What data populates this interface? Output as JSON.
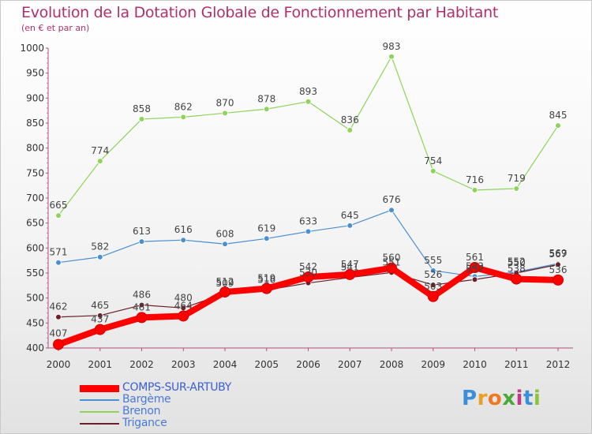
{
  "header": {
    "title": "Evolution de la Dotation Globale de Fonctionnement par Habitant",
    "subtitle": "(en € et par an)"
  },
  "logo": {
    "letters": [
      {
        "ch": "P",
        "color": "#3a8fd8"
      },
      {
        "ch": "r",
        "color": "#e8a020"
      },
      {
        "ch": "o",
        "color": "#f07820"
      },
      {
        "ch": "x",
        "color": "#4aa83a"
      },
      {
        "ch": "i",
        "color": "#c03a8a"
      },
      {
        "ch": "t",
        "color": "#3a8fd8"
      },
      {
        "ch": "i",
        "color": "#8ac43a"
      }
    ]
  },
  "chart_data": {
    "type": "line",
    "title": "Evolution de la Dotation Globale de Fonctionnement par Habitant",
    "subtitle": "(en € et par an)",
    "x": [
      "2000",
      "2001",
      "2002",
      "2003",
      "2004",
      "2005",
      "2006",
      "2007",
      "2008",
      "2009",
      "2010",
      "2011",
      "2012"
    ],
    "ylim": [
      400,
      1000
    ],
    "yticks": [
      400,
      450,
      500,
      550,
      600,
      650,
      700,
      750,
      800,
      850,
      900,
      950,
      1000
    ],
    "grid": false,
    "legend_position": "bottom-left",
    "series": [
      {
        "name": "COMPS-SUR-ARTUBY",
        "color": "#ff0000",
        "emphasis": true,
        "values": [
          407,
          437,
          461,
          464,
          512,
          519,
          542,
          547,
          560,
          503,
          561,
          538,
          536
        ]
      },
      {
        "name": "Bargème",
        "color": "#4a8fd0",
        "emphasis": false,
        "values": [
          571,
          582,
          613,
          616,
          608,
          619,
          633,
          645,
          676,
          555,
          543,
          552,
          569
        ]
      },
      {
        "name": "Brenon",
        "color": "#8ed35a",
        "emphasis": false,
        "values": [
          665,
          774,
          858,
          862,
          870,
          878,
          893,
          836,
          983,
          754,
          716,
          719,
          845
        ]
      },
      {
        "name": "Trigance",
        "color": "#6b1f2a",
        "emphasis": false,
        "values": [
          462,
          465,
          486,
          480,
          509,
          516,
          530,
          541,
          551,
          526,
          537,
          550,
          567
        ]
      }
    ]
  }
}
